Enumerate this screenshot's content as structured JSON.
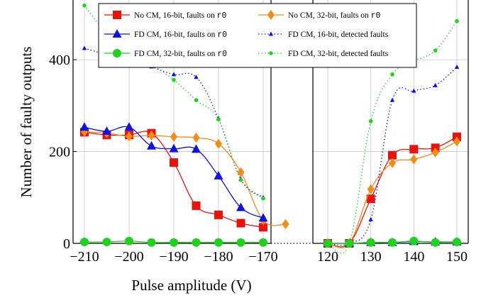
{
  "chart_data": {
    "type": "line",
    "ylabel": "Number of faulty outputs",
    "xlabel": "Pulse amplitude (V)",
    "ylim": [
      0,
      530
    ],
    "grid": true,
    "legend_position": "top",
    "panels": [
      {
        "name": "left",
        "xlim": [
          -210,
          -170
        ],
        "xticks": [
          -210,
          -200,
          -190,
          -180,
          -170
        ],
        "xtick_labels": [
          "−210",
          "−200",
          "−190",
          "−180",
          "−170"
        ]
      },
      {
        "name": "right",
        "xlim": [
          120,
          150
        ],
        "xticks": [
          120,
          130,
          140,
          150
        ],
        "xtick_labels": [
          "120",
          "130",
          "140",
          "150"
        ]
      }
    ],
    "yticks": [
      0,
      200,
      400
    ],
    "ytick_labels": [
      "0",
      "200",
      "400"
    ],
    "series": [
      {
        "name": "No CM, 16-bit, faults on",
        "reg": "r0",
        "color": "#e8120e",
        "style": "solid",
        "marker": "square",
        "left": [
          [
            -210,
            242
          ],
          [
            -205,
            236
          ],
          [
            -200,
            236
          ],
          [
            -195,
            240
          ],
          [
            -190,
            176
          ],
          [
            -185,
            82
          ],
          [
            -180,
            62
          ],
          [
            -175,
            44
          ],
          [
            -170,
            35
          ]
        ],
        "right": [
          [
            120,
            0
          ],
          [
            125,
            0
          ],
          [
            130,
            97
          ],
          [
            135,
            192
          ],
          [
            140,
            205
          ],
          [
            145,
            208
          ],
          [
            150,
            232
          ]
        ]
      },
      {
        "name": "No CM, 32-bit, faults on",
        "reg": "r0",
        "color": "#f28c14",
        "style": "solid",
        "marker": "diamond",
        "left": [
          [
            -210,
            243
          ],
          [
            -205,
            240
          ],
          [
            -200,
            233
          ],
          [
            -195,
            235
          ],
          [
            -190,
            232
          ],
          [
            -185,
            230
          ],
          [
            -180,
            217
          ],
          [
            -175,
            155
          ],
          [
            -170,
            50
          ],
          [
            -165,
            42
          ]
        ],
        "right": [
          [
            120,
            0
          ],
          [
            125,
            0
          ],
          [
            130,
            118
          ],
          [
            135,
            175
          ],
          [
            140,
            183
          ],
          [
            145,
            198
          ],
          [
            150,
            222
          ]
        ]
      },
      {
        "name": "FD CM, 16-bit, faults on",
        "reg": "r0",
        "color": "#1010e0",
        "style": "solid",
        "marker": "triangle",
        "left": [
          [
            -210,
            253
          ],
          [
            -205,
            244
          ],
          [
            -200,
            253
          ],
          [
            -195,
            212
          ],
          [
            -190,
            206
          ],
          [
            -185,
            205
          ],
          [
            -180,
            147
          ],
          [
            -175,
            78
          ],
          [
            -170,
            55
          ]
        ],
        "right": [
          [
            120,
            0
          ],
          [
            125,
            0
          ],
          [
            130,
            2
          ],
          [
            135,
            2
          ],
          [
            140,
            4
          ],
          [
            145,
            3
          ],
          [
            150,
            3
          ]
        ]
      },
      {
        "name": "FD CM, 16-bit, detected faults",
        "reg": "",
        "color": "#1010e0",
        "style": "dotted",
        "marker": "triangle-small",
        "left": [
          [
            -210,
            425
          ],
          [
            -205,
            412
          ],
          [
            -200,
            408
          ],
          [
            -195,
            385
          ],
          [
            -190,
            368
          ],
          [
            -185,
            362
          ],
          [
            -180,
            272
          ],
          [
            -175,
            140
          ],
          [
            -170,
            100
          ]
        ],
        "right": [
          [
            120,
            0
          ],
          [
            125,
            0
          ],
          [
            130,
            52
          ],
          [
            135,
            312
          ],
          [
            140,
            332
          ],
          [
            145,
            344
          ],
          [
            150,
            384
          ]
        ]
      },
      {
        "name": "FD CM, 32-bit, faults on",
        "reg": "r0",
        "color": "#1ed21e",
        "style": "solid",
        "marker": "circle",
        "left": [
          [
            -210,
            3
          ],
          [
            -205,
            3
          ],
          [
            -200,
            5
          ],
          [
            -195,
            2
          ],
          [
            -190,
            2
          ],
          [
            -185,
            2
          ],
          [
            -180,
            2
          ],
          [
            -175,
            2
          ],
          [
            -170,
            2
          ]
        ],
        "right": [
          [
            120,
            0
          ],
          [
            125,
            0
          ],
          [
            130,
            2
          ],
          [
            135,
            2
          ],
          [
            140,
            5
          ],
          [
            145,
            2
          ],
          [
            150,
            3
          ]
        ]
      },
      {
        "name": "FD CM, 32-bit, detected faults",
        "reg": "",
        "color": "#1ed21e",
        "style": "dotted",
        "marker": "circle-small",
        "left": [
          [
            -210,
            518
          ],
          [
            -205,
            460
          ],
          [
            -200,
            440
          ],
          [
            -195,
            392
          ],
          [
            -190,
            356
          ],
          [
            -185,
            312
          ],
          [
            -180,
            270
          ],
          [
            -175,
            138
          ],
          [
            -170,
            98
          ]
        ],
        "right": [
          [
            120,
            0
          ],
          [
            125,
            0
          ],
          [
            130,
            266
          ],
          [
            135,
            368
          ],
          [
            140,
            397
          ],
          [
            145,
            420
          ],
          [
            150,
            484
          ]
        ]
      }
    ]
  }
}
